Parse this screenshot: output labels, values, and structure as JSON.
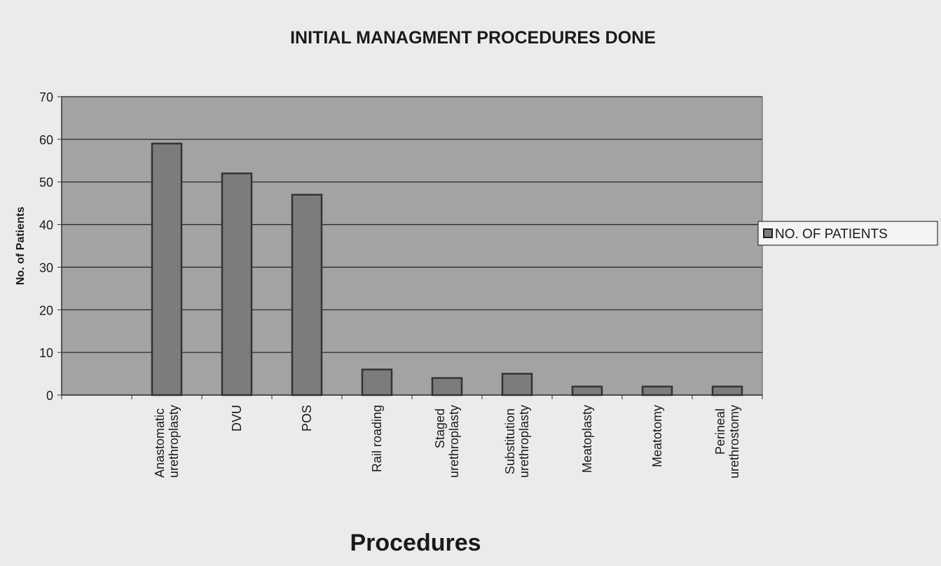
{
  "chart_data": {
    "type": "bar",
    "title": "INITIAL MANAGMENT PROCEDURES DONE",
    "x_label": "Procedures",
    "y_label": "No. of Patients",
    "categories": [
      null,
      "Anastomatic urethroplasty",
      "DVU",
      "POS",
      "Rail roading",
      "Staged urethroplasty",
      "Substitution urethroplasty",
      "Meatoplasty",
      "Meatotomy",
      "Perineal urethrostomy"
    ],
    "series": [
      {
        "name": "NO. OF PATIENTS",
        "color": "#7c7c7c",
        "values": [
          null,
          59,
          52,
          47,
          6,
          4,
          5,
          2,
          2,
          2
        ]
      }
    ],
    "ylim": [
      0,
      70
    ],
    "yticks": [
      0,
      10,
      20,
      30,
      40,
      50,
      60,
      70
    ],
    "grid": true,
    "legend": "right"
  }
}
